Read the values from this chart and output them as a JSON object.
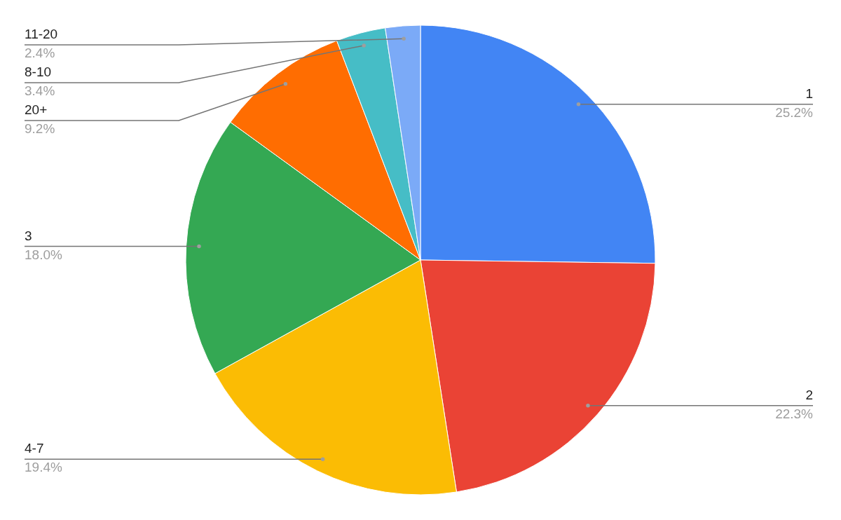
{
  "chart_data": {
    "type": "pie",
    "categories": [
      "1",
      "2",
      "4-7",
      "3",
      "20+",
      "8-10",
      "11-20"
    ],
    "values": [
      25.2,
      22.3,
      19.4,
      18.0,
      9.2,
      3.4,
      2.4
    ],
    "colors": [
      "#4285f4",
      "#ea4335",
      "#fbbc04",
      "#34a853",
      "#ff6d01",
      "#46bdc6",
      "#7baaf7"
    ],
    "value_labels": [
      "25.2%",
      "22.3%",
      "19.4%",
      "18.0%",
      "9.2%",
      "3.4%",
      "2.4%"
    ]
  }
}
